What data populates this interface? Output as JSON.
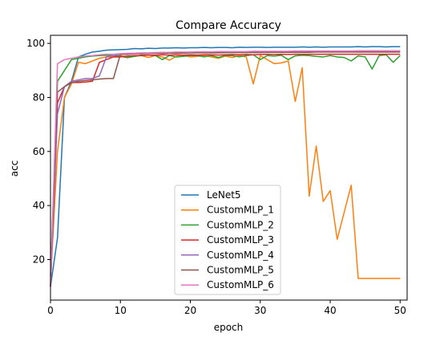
{
  "chart_data": {
    "type": "line",
    "title": "Compare Accuracy",
    "xlabel": "epoch",
    "ylabel": "acc",
    "xlim": [
      0,
      51
    ],
    "ylim": [
      5,
      103
    ],
    "xticks": [
      0,
      10,
      20,
      30,
      40,
      50
    ],
    "yticks": [
      20,
      40,
      60,
      80,
      100
    ],
    "grid": false,
    "legend_position": "lower-center",
    "x": [
      0,
      1,
      2,
      3,
      4,
      5,
      6,
      7,
      8,
      9,
      10,
      11,
      12,
      13,
      14,
      15,
      16,
      17,
      18,
      19,
      20,
      21,
      22,
      23,
      24,
      25,
      26,
      27,
      28,
      29,
      30,
      31,
      32,
      33,
      34,
      35,
      36,
      37,
      38,
      39,
      40,
      41,
      42,
      43,
      44,
      45,
      46,
      47,
      48,
      49,
      50
    ],
    "series": [
      {
        "name": "LeNet5",
        "color": "#1f77b4",
        "values": [
          10,
          28,
          80,
          86,
          95,
          96,
          96.8,
          97.1,
          97.5,
          97.6,
          97.7,
          97.8,
          98.1,
          98,
          98.2,
          98.1,
          98.3,
          98.3,
          98.4,
          98.3,
          98.4,
          98.4,
          98.5,
          98.4,
          98.5,
          98.5,
          98.4,
          98.6,
          98.5,
          98.6,
          98.6,
          98.5,
          98.6,
          98.6,
          98.6,
          98.6,
          98.7,
          98.6,
          98.7,
          98.6,
          98.7,
          98.7,
          98.7,
          98.7,
          98.8,
          98.7,
          98.8,
          98.8,
          98.7,
          98.8,
          98.8
        ]
      },
      {
        "name": "CustomMLP_1",
        "color": "#ff7f0e",
        "values": [
          12,
          60,
          80,
          85,
          93,
          92.5,
          93.5,
          94.5,
          95,
          95,
          95.5,
          95,
          95.2,
          95.5,
          94.8,
          95.5,
          95,
          93.8,
          95.2,
          95.5,
          95,
          95.2,
          95.5,
          95,
          94.5,
          95.3,
          94.8,
          95.5,
          95,
          85,
          95.5,
          94,
          92.5,
          92.8,
          93.5,
          78.5,
          91,
          43.5,
          62,
          41.5,
          45.5,
          27.5,
          37.5,
          47.5,
          13,
          13,
          13,
          13,
          13,
          13,
          13
        ]
      },
      {
        "name": "CustomMLP_2",
        "color": "#2ca02c",
        "values": [
          14,
          86,
          90,
          94,
          94.5,
          95,
          95.3,
          95.5,
          95.6,
          95.5,
          95.2,
          94.7,
          95.2,
          95.7,
          95.7,
          95.5,
          94,
          95.5,
          95,
          95.2,
          95.5,
          95.5,
          95,
          95.5,
          94.8,
          95.5,
          95.5,
          95,
          95.5,
          95.8,
          94,
          95.5,
          95.3,
          95.6,
          94,
          95.4,
          95.6,
          95.5,
          95.2,
          95,
          95.5,
          95,
          94.8,
          93.5,
          95.4,
          95,
          90.5,
          95.5,
          95.8,
          93,
          95.5
        ]
      },
      {
        "name": "CustomMLP_3",
        "color": "#d62728",
        "values": [
          10,
          78,
          84,
          85.5,
          85.5,
          85.7,
          86,
          93,
          94,
          95,
          95,
          95.3,
          95.5,
          95.5,
          95.7,
          95.6,
          95.8,
          95.7,
          95.8,
          95.7,
          95.8,
          95.7,
          95.8,
          95.8,
          95.7,
          95.8,
          95.9,
          95.8,
          95.9,
          95.8,
          95.9,
          96,
          95.9,
          96,
          95.9,
          96,
          96,
          96,
          96,
          96,
          96,
          96,
          96,
          96,
          96,
          96,
          96,
          96,
          96,
          96,
          96
        ]
      },
      {
        "name": "CustomMLP_4",
        "color": "#9467bd",
        "values": [
          10,
          74,
          84,
          86,
          86.5,
          87,
          87,
          88,
          95,
          95.5,
          96,
          96,
          96.2,
          96.2,
          96.3,
          96.3,
          96.4,
          96.4,
          96.5,
          96.5,
          96.5,
          96.5,
          96.6,
          96.6,
          96.6,
          96.6,
          96.7,
          96.7,
          96.7,
          96.7,
          96.7,
          96.8,
          96.8,
          96.8,
          96.8,
          96.8,
          96.8,
          96.9,
          96.9,
          96.9,
          96.9,
          96.9,
          96.9,
          96.9,
          97,
          97,
          97,
          97,
          97,
          97,
          97
        ]
      },
      {
        "name": "CustomMLP_5",
        "color": "#8c564b",
        "values": [
          10,
          82,
          84,
          85.5,
          86,
          86.3,
          86.5,
          86.8,
          87,
          87,
          96,
          96,
          96.2,
          96.2,
          96.3,
          96.3,
          96.3,
          96.4,
          96.4,
          96.4,
          96.5,
          96.5,
          96.5,
          96.5,
          96.5,
          96.6,
          96.6,
          96.6,
          96.6,
          96.6,
          96.6,
          96.7,
          96.7,
          96.7,
          96.7,
          96.7,
          96.7,
          96.7,
          96.8,
          96.8,
          96.8,
          96.8,
          96.8,
          96.8,
          96.8,
          96.8,
          96.8,
          96.8,
          96.8,
          96.8,
          96.8
        ]
      },
      {
        "name": "CustomMLP_6",
        "color": "#e377c2",
        "values": [
          10,
          92.5,
          94,
          94.5,
          95,
          95.3,
          95.5,
          95.8,
          96,
          96,
          96.2,
          96.3,
          96.4,
          96.5,
          96.5,
          96.6,
          96.7,
          96.7,
          96.8,
          96.8,
          96.8,
          96.9,
          96.9,
          96.9,
          97,
          97,
          97,
          97,
          97,
          97.1,
          97.1,
          97.1,
          97.1,
          97.1,
          97.1,
          97.2,
          97.2,
          97.2,
          97.2,
          97.2,
          97.2,
          97.2,
          97.2,
          97.2,
          97.3,
          97.3,
          97.3,
          97.3,
          97.3,
          97.3,
          97.3
        ]
      }
    ]
  }
}
